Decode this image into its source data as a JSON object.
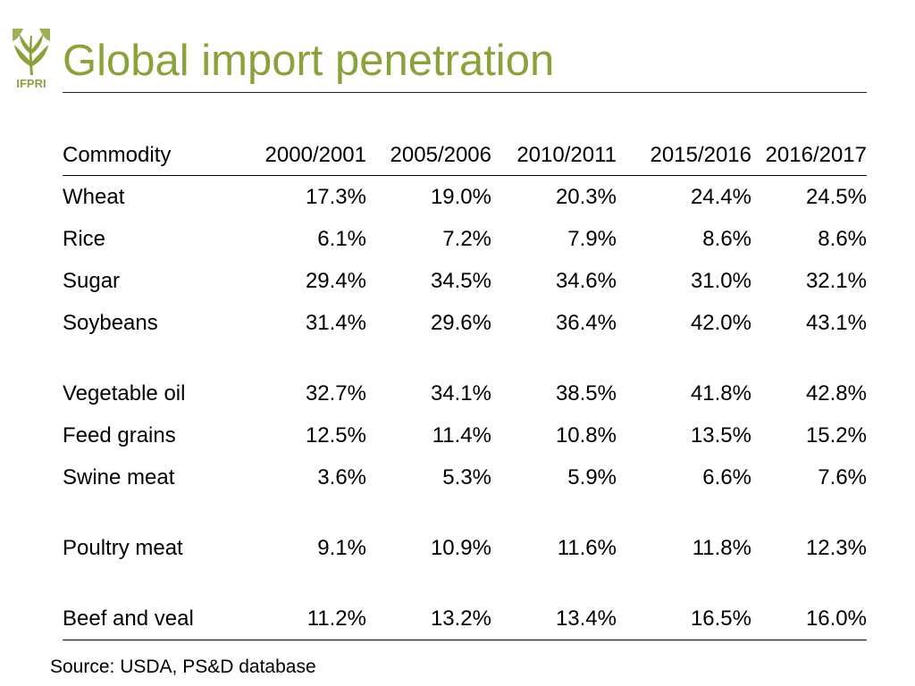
{
  "header": {
    "title": "Global import penetration",
    "logo_text": "IFPRI",
    "brand_color": "#8aa23a"
  },
  "table": {
    "columns": [
      "Commodity",
      "2000/2001",
      "2005/2006",
      "2010/2011",
      "2015/2016",
      "2016/2017"
    ],
    "rows": [
      {
        "commodity": "Wheat",
        "values": [
          "17.3%",
          "19.0%",
          "20.3%",
          "24.4%",
          "24.5%"
        ]
      },
      {
        "commodity": "Rice",
        "values": [
          "6.1%",
          "7.2%",
          "7.9%",
          "8.6%",
          "8.6%"
        ]
      },
      {
        "commodity": "Sugar",
        "values": [
          "29.4%",
          "34.5%",
          "34.6%",
          "31.0%",
          "32.1%"
        ]
      },
      {
        "commodity": "Soybeans",
        "values": [
          "31.4%",
          "29.6%",
          "36.4%",
          "42.0%",
          "43.1%"
        ]
      },
      {
        "commodity": "Vegetable oil",
        "values": [
          "32.7%",
          "34.1%",
          "38.5%",
          "41.8%",
          "42.8%"
        ]
      },
      {
        "commodity": "Feed grains",
        "values": [
          "12.5%",
          "11.4%",
          "10.8%",
          "13.5%",
          "15.2%"
        ]
      },
      {
        "commodity": "Swine meat",
        "values": [
          "3.6%",
          "5.3%",
          "5.9%",
          "6.6%",
          "7.6%"
        ]
      },
      {
        "commodity": "Poultry meat",
        "values": [
          "9.1%",
          "10.9%",
          "11.6%",
          "11.8%",
          "12.3%"
        ]
      },
      {
        "commodity": "Beef and veal",
        "values": [
          "11.2%",
          "13.2%",
          "13.4%",
          "16.5%",
          "16.0%"
        ]
      }
    ]
  },
  "footer": {
    "source": "Source: USDA, PS&D database"
  }
}
